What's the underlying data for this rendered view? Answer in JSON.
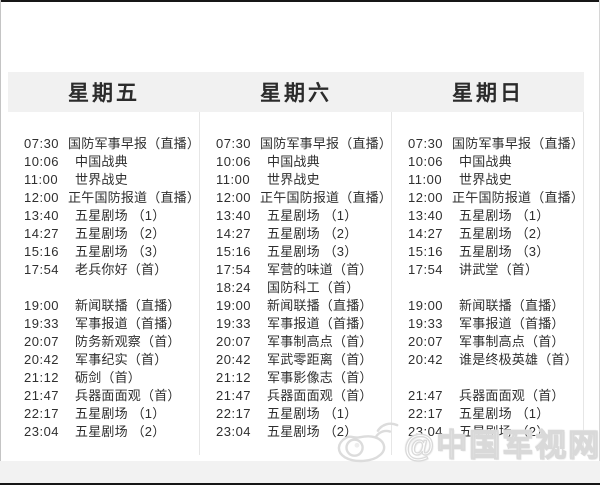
{
  "schedule": {
    "columns": [
      {
        "day": "星期五",
        "rows": [
          {
            "time": "07:30",
            "title": "国防军事早报（直播）"
          },
          {
            "time": "10:06",
            "title": "中国战典"
          },
          {
            "time": "11:00",
            "title": "世界战史"
          },
          {
            "time": "12:00",
            "title": "正午国防报道（直播）"
          },
          {
            "time": "13:40",
            "title": "五星剧场 （1）"
          },
          {
            "time": "14:27",
            "title": "五星剧场 （2）"
          },
          {
            "time": "15:16",
            "title": "五星剧场 （3）"
          },
          {
            "time": "17:54",
            "title": "老兵你好（首）"
          },
          {
            "time": "",
            "title": ""
          },
          {
            "time": "19:00",
            "title": "新闻联播（直播）"
          },
          {
            "time": "19:33",
            "title": "军事报道（首播）"
          },
          {
            "time": "20:07",
            "title": "防务新观察（首）"
          },
          {
            "time": "20:42",
            "title": "军事纪实（首）"
          },
          {
            "time": "21:12",
            "title": "砺剑（首）"
          },
          {
            "time": "21:47",
            "title": "兵器面面观（首）"
          },
          {
            "time": "22:17",
            "title": "五星剧场 （1）"
          },
          {
            "time": "23:04",
            "title": "五星剧场 （2）"
          }
        ]
      },
      {
        "day": "星期六",
        "rows": [
          {
            "time": "07:30",
            "title": "国防军事早报（直播）"
          },
          {
            "time": "10:06",
            "title": "中国战典"
          },
          {
            "time": "11:00",
            "title": "世界战史"
          },
          {
            "time": "12:00",
            "title": "正午国防报道（直播）"
          },
          {
            "time": "13:40",
            "title": "五星剧场 （1）"
          },
          {
            "time": "14:27",
            "title": "五星剧场 （2）"
          },
          {
            "time": "15:16",
            "title": "五星剧场 （3）"
          },
          {
            "time": "17:54",
            "title": "军营的味道（首）"
          },
          {
            "time": "18:24",
            "title": "国防科工（首）"
          },
          {
            "time": "19:00",
            "title": "新闻联播（直播）"
          },
          {
            "time": "19:33",
            "title": "军事报道（首播）"
          },
          {
            "time": "20:07",
            "title": "军事制高点（首）"
          },
          {
            "time": "20:42",
            "title": "军武零距离（首）"
          },
          {
            "time": "21:12",
            "title": "军事影像志（首）"
          },
          {
            "time": "21:47",
            "title": "兵器面面观（首）"
          },
          {
            "time": "22:17",
            "title": "五星剧场 （1）"
          },
          {
            "time": "23:04",
            "title": "五星剧场 （2）"
          }
        ]
      },
      {
        "day": "星期日",
        "rows": [
          {
            "time": "07:30",
            "title": "国防军事早报（直播）"
          },
          {
            "time": "10:06",
            "title": "中国战典"
          },
          {
            "time": "11:00",
            "title": "世界战史"
          },
          {
            "time": "12:00",
            "title": "正午国防报道（直播）"
          },
          {
            "time": "13:40",
            "title": "五星剧场 （1）"
          },
          {
            "time": "14:27",
            "title": "五星剧场 （2）"
          },
          {
            "time": "15:16",
            "title": "五星剧场 （3）"
          },
          {
            "time": "17:54",
            "title": "讲武堂（首）"
          },
          {
            "time": "",
            "title": ""
          },
          {
            "time": "19:00",
            "title": "新闻联播（直播）"
          },
          {
            "time": "19:33",
            "title": "军事报道（首播）"
          },
          {
            "time": "20:07",
            "title": "军事制高点（首）"
          },
          {
            "time": "20:42",
            "title": "谁是终极英雄（首）"
          },
          {
            "time": "",
            "title": ""
          },
          {
            "time": "21:47",
            "title": "兵器面面观（首）"
          },
          {
            "time": "22:17",
            "title": "五星剧场 （1）"
          },
          {
            "time": "23:04",
            "title": "五星剧场 （2）"
          }
        ]
      }
    ]
  },
  "watermark": {
    "handle": "@中国军视网",
    "icon": "weibo-icon"
  },
  "colors": {
    "header_band": "#f1f1f1",
    "text": "#2f2f2f",
    "divider": "#e6e6e6",
    "footer_band": "#f2f2f2",
    "edge": "#161616",
    "watermark_outline": "#d9d9d9"
  }
}
